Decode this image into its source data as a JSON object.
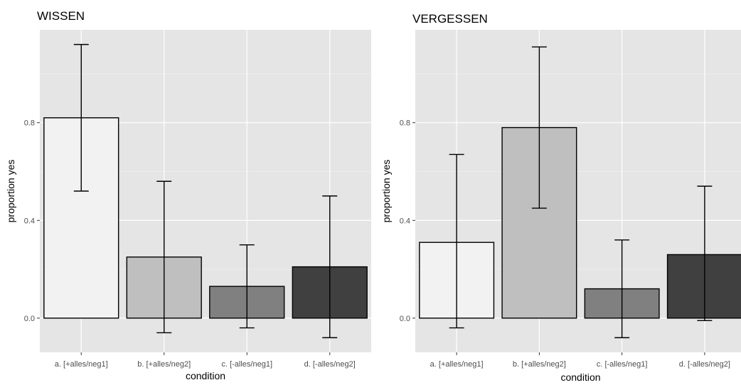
{
  "chart_data": [
    {
      "type": "bar",
      "title": "WISSEN",
      "xlabel": "condition",
      "ylabel": "proportion yes",
      "categories": [
        "a. [+alles/neg1]",
        "b. [+alles/neg2]",
        "c. [-alles/neg1]",
        "d. [-alles/neg2]"
      ],
      "values": [
        0.82,
        0.25,
        0.13,
        0.21
      ],
      "error_low": [
        0.52,
        -0.06,
        -0.04,
        -0.08
      ],
      "error_high": [
        1.12,
        0.56,
        0.3,
        0.5
      ],
      "fill_colors": [
        "#f2f2f2",
        "#bfbfbf",
        "#808080",
        "#404040"
      ],
      "yticks": [
        0.0,
        0.4,
        0.8
      ],
      "ytick_labels": [
        "0.0",
        "0.4",
        "0.8"
      ],
      "ylim": [
        -0.14,
        1.18
      ],
      "grid": true,
      "legend": "none"
    },
    {
      "type": "bar",
      "title": "VERGESSEN",
      "xlabel": "condition",
      "ylabel": "proportion yes",
      "categories": [
        "a. [+alles/neg1]",
        "b. [+alles/neg2]",
        "c. [-alles/neg1]",
        "d. [-alles/neg2]"
      ],
      "values": [
        0.31,
        0.78,
        0.12,
        0.26
      ],
      "error_low": [
        -0.04,
        0.45,
        -0.08,
        -0.01
      ],
      "error_high": [
        0.67,
        1.11,
        0.32,
        0.54
      ],
      "fill_colors": [
        "#f2f2f2",
        "#bfbfbf",
        "#808080",
        "#404040"
      ],
      "yticks": [
        0.0,
        0.4,
        0.8
      ],
      "ytick_labels": [
        "0.0",
        "0.4",
        "0.8"
      ],
      "ylim": [
        -0.14,
        1.18
      ],
      "grid": true,
      "legend": "none"
    }
  ],
  "colors": {
    "panel_background": "#e5e5e5",
    "grid_major": "#ffffff",
    "grid_minor": "#f0f0f0",
    "bar_outline": "#000000",
    "tick_text": "#4d4d4d"
  }
}
